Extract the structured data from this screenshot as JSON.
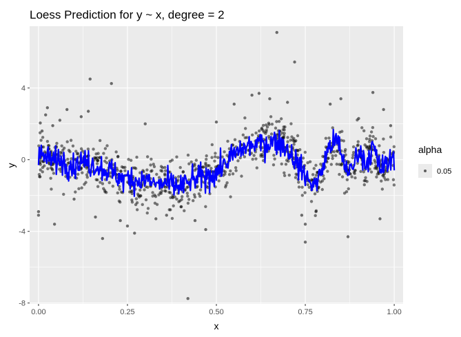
{
  "chart_data": {
    "type": "scatter",
    "title": "Loess Prediction for y ~ x, degree = 2",
    "xlabel": "x",
    "ylabel": "y",
    "xlim": [
      -0.025,
      1.025
    ],
    "ylim": [
      -8.05,
      7.45
    ],
    "x_ticks": [
      0,
      0.25,
      0.5,
      0.75,
      1
    ],
    "x_tick_labels": [
      "0.00",
      "0.25",
      "0.50",
      "0.75",
      "1.00"
    ],
    "y_ticks": [
      -8,
      -4,
      0,
      4
    ],
    "y_tick_labels": [
      "-8",
      "-4",
      "0",
      "4"
    ],
    "grid": true,
    "legend": {
      "title": "alpha",
      "placement": "right",
      "label": "0.05"
    },
    "colors": {
      "points": "#000000",
      "line": "#0000ff",
      "panel": "#ebebeb",
      "grid": "#ffffff"
    },
    "points": [
      {
        "x": 0.0,
        "y": -2.9
      },
      {
        "x": 0.0,
        "y": -3.1
      },
      {
        "x": 0.005,
        "y": 2.05
      },
      {
        "x": 0.01,
        "y": 1.6
      },
      {
        "x": 0.02,
        "y": 2.5
      },
      {
        "x": 0.025,
        "y": 2.9
      },
      {
        "x": 0.04,
        "y": 1.9
      },
      {
        "x": 0.045,
        "y": -3.6
      },
      {
        "x": 0.06,
        "y": 2.2
      },
      {
        "x": 0.08,
        "y": 2.8
      },
      {
        "x": 0.1,
        "y": -2.2
      },
      {
        "x": 0.12,
        "y": 2.4
      },
      {
        "x": 0.14,
        "y": 2.7
      },
      {
        "x": 0.145,
        "y": 4.5
      },
      {
        "x": 0.16,
        "y": -3.2
      },
      {
        "x": 0.18,
        "y": -4.4
      },
      {
        "x": 0.205,
        "y": 4.25
      },
      {
        "x": 0.23,
        "y": -3.4
      },
      {
        "x": 0.25,
        "y": -3.7
      },
      {
        "x": 0.27,
        "y": -4.1
      },
      {
        "x": 0.3,
        "y": 2.0
      },
      {
        "x": 0.33,
        "y": -3.3
      },
      {
        "x": 0.36,
        "y": -3.1
      },
      {
        "x": 0.42,
        "y": -7.75
      },
      {
        "x": 0.44,
        "y": -3.4
      },
      {
        "x": 0.47,
        "y": -3.9
      },
      {
        "x": 0.5,
        "y": 2.1
      },
      {
        "x": 0.55,
        "y": 3.1
      },
      {
        "x": 0.6,
        "y": 3.6
      },
      {
        "x": 0.62,
        "y": 3.7
      },
      {
        "x": 0.65,
        "y": 3.4
      },
      {
        "x": 0.67,
        "y": 7.1
      },
      {
        "x": 0.7,
        "y": 3.2
      },
      {
        "x": 0.72,
        "y": 5.45
      },
      {
        "x": 0.74,
        "y": -3.1
      },
      {
        "x": 0.75,
        "y": -3.6
      },
      {
        "x": 0.75,
        "y": -4.6
      },
      {
        "x": 0.78,
        "y": -2.9
      },
      {
        "x": 0.82,
        "y": 3.1
      },
      {
        "x": 0.85,
        "y": 3.4
      },
      {
        "x": 0.87,
        "y": -4.3
      },
      {
        "x": 0.9,
        "y": 2.3
      },
      {
        "x": 0.94,
        "y": 3.75
      },
      {
        "x": 0.96,
        "y": -3.3
      },
      {
        "x": 0.97,
        "y": 2.8
      },
      {
        "x": 0.99,
        "y": 1.9
      }
    ],
    "series": [
      {
        "type": "line",
        "x": [
          0.0,
          0.02,
          0.04,
          0.06,
          0.08,
          0.1,
          0.12,
          0.14,
          0.16,
          0.18,
          0.2,
          0.22,
          0.24,
          0.26,
          0.28,
          0.3,
          0.32,
          0.34,
          0.36,
          0.38,
          0.4,
          0.42,
          0.44,
          0.46,
          0.48,
          0.5,
          0.52,
          0.54,
          0.56,
          0.58,
          0.6,
          0.62,
          0.64,
          0.66,
          0.68,
          0.7,
          0.72,
          0.74,
          0.76,
          0.78,
          0.8,
          0.82,
          0.84,
          0.86,
          0.88,
          0.9,
          0.92,
          0.94,
          0.96,
          0.98,
          1.0
        ],
        "y": [
          0.3,
          0.1,
          -0.1,
          0.0,
          -0.2,
          -0.3,
          -0.1,
          -0.2,
          -0.3,
          -0.5,
          -0.6,
          -0.9,
          -1.1,
          -1.0,
          -1.2,
          -1.1,
          -1.3,
          -1.4,
          -1.3,
          -1.5,
          -1.5,
          -1.3,
          -1.1,
          -1.0,
          -0.9,
          -0.7,
          -0.3,
          0.1,
          0.4,
          0.7,
          0.8,
          0.9,
          0.9,
          1.0,
          1.0,
          0.6,
          0.0,
          -0.6,
          -1.2,
          -1.4,
          -0.4,
          0.9,
          1.0,
          -0.3,
          -0.7,
          0.6,
          -0.2,
          0.7,
          -0.5,
          -0.3,
          0.2
        ]
      }
    ]
  }
}
